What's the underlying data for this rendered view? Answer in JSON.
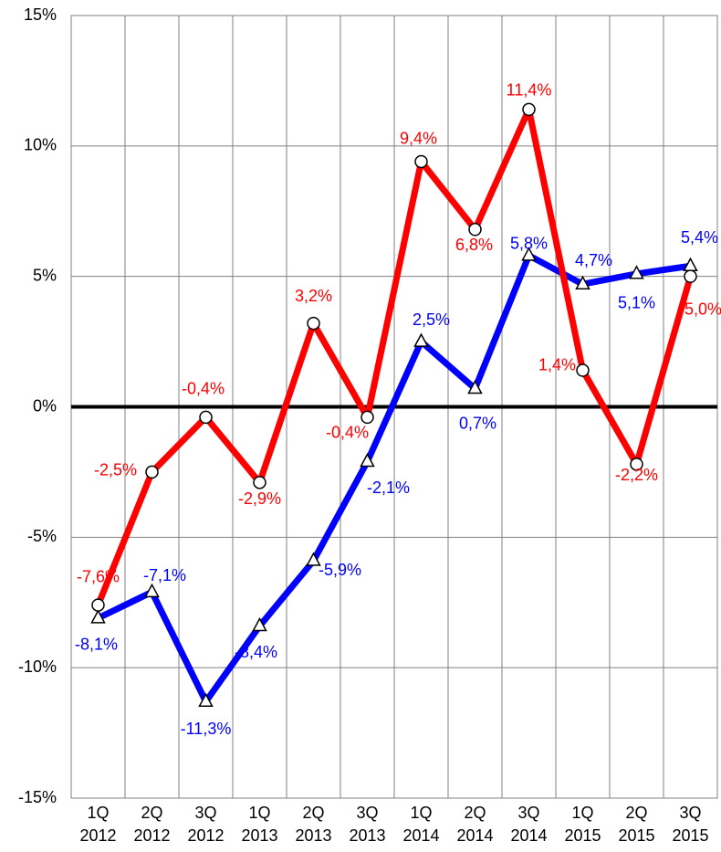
{
  "chart_data": {
    "type": "line",
    "categories": [
      "1Q 2012",
      "2Q 2012",
      "3Q 2012",
      "1Q 2013",
      "2Q 2013",
      "3Q 2013",
      "1Q 2014",
      "2Q 2014",
      "3Q 2014",
      "1Q 2015",
      "2Q 2015",
      "3Q 2015"
    ],
    "series": [
      {
        "color": "#0000ff",
        "marker": "triangle",
        "values": [
          -8.1,
          -7.1,
          -11.3,
          -8.4,
          -5.9,
          -2.1,
          2.5,
          0.7,
          5.8,
          4.7,
          5.1,
          5.4
        ],
        "value_labels": [
          "-8,1%",
          "-7,1%",
          "-11,3%",
          "-8,4%",
          "-5,9%",
          "-2,1%",
          "2,5%",
          "0,7%",
          "5,8%",
          "4,7%",
          "5,1%",
          "5,4%"
        ]
      },
      {
        "color": "#ff0000",
        "marker": "circle",
        "values": [
          -7.6,
          -2.5,
          -0.4,
          -2.9,
          3.2,
          -0.4,
          9.4,
          6.8,
          11.4,
          1.4,
          -2.2,
          5.0
        ],
        "value_labels": [
          "-7,6%",
          "-2,5%",
          "-0,4%",
          "-2,9%",
          "3,2%",
          "-0,4%",
          "9,4%",
          "6,8%",
          "11,4%",
          "1,4%",
          "-2,2%",
          "5,0%"
        ]
      }
    ],
    "ylim": [
      -15,
      15
    ],
    "yticks": [
      {
        "value": -15,
        "label": "-15%"
      },
      {
        "value": -10,
        "label": "-10%"
      },
      {
        "value": -5,
        "label": "-5%"
      },
      {
        "value": 0,
        "label": "0%"
      },
      {
        "value": 5,
        "label": "5%"
      },
      {
        "value": 10,
        "label": "10%"
      },
      {
        "value": 15,
        "label": "15%"
      }
    ],
    "grid": true
  }
}
